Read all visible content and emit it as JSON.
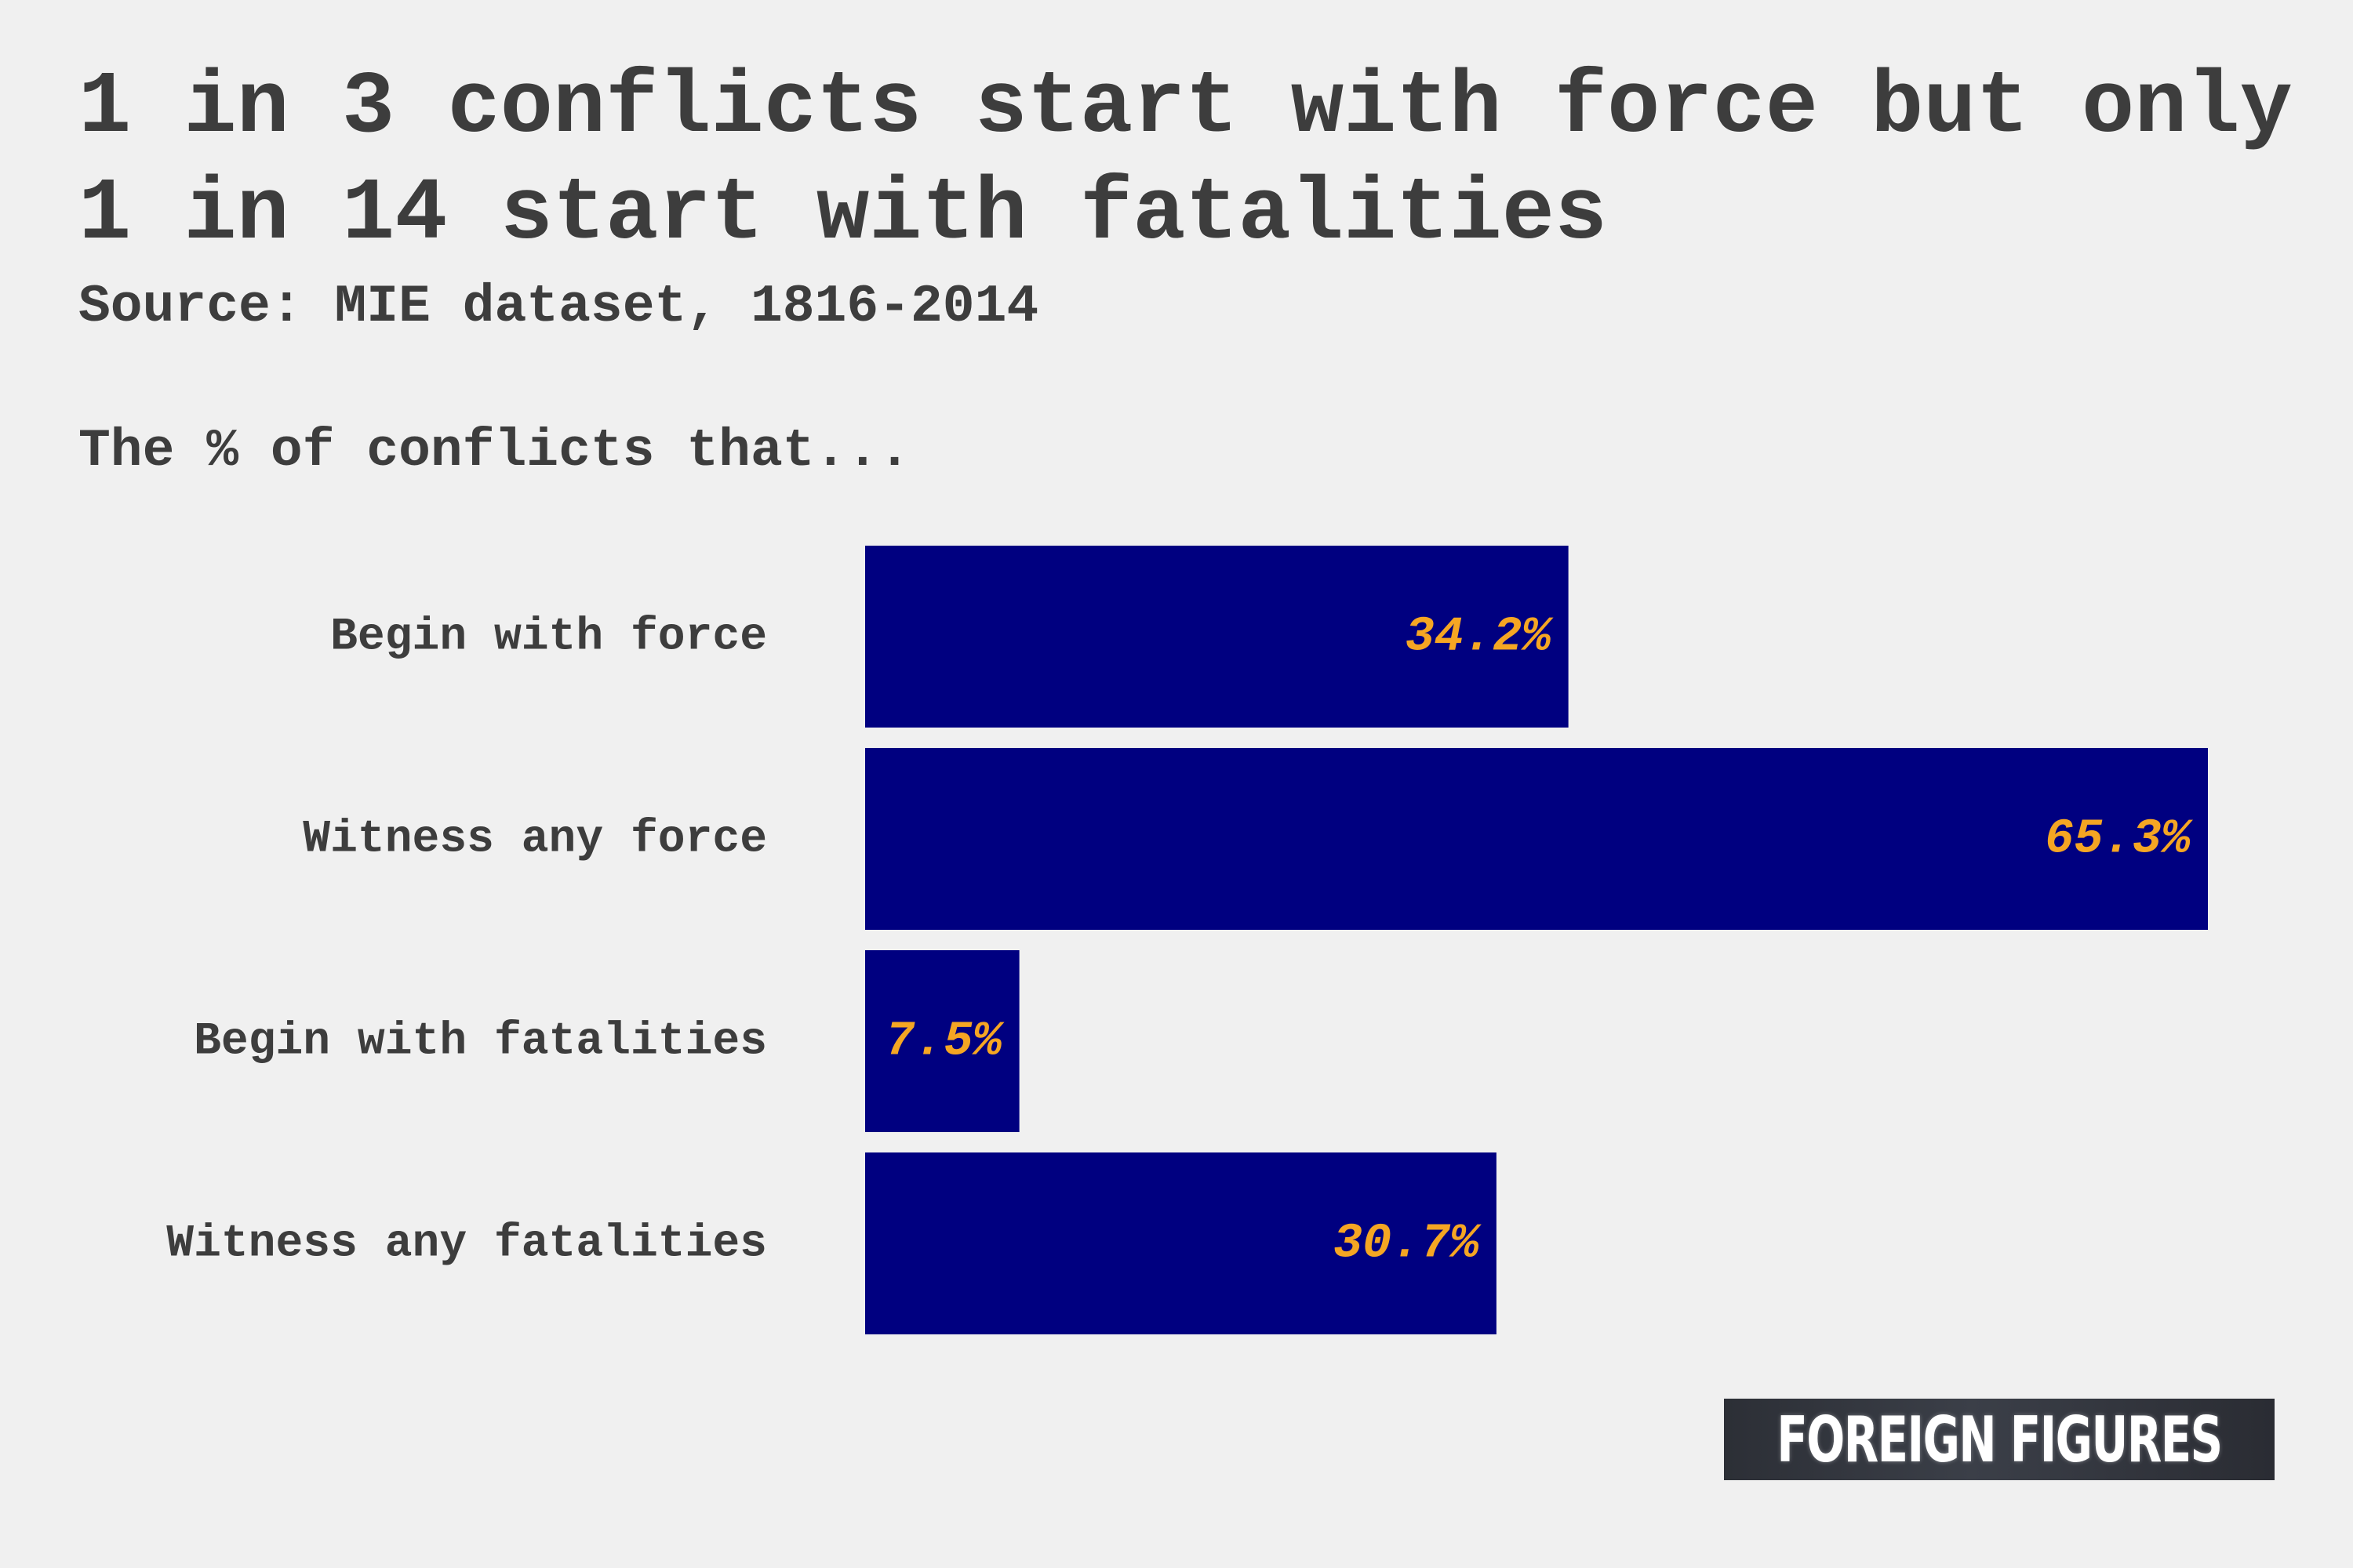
{
  "title": "1 in 3 conflicts start with force but only 1 in 14 start with fatalities",
  "source": "Source: MIE dataset, 1816-2014",
  "subtitle": "The % of conflicts that...",
  "logo_text": "FOREIGN FIGURES",
  "colors": {
    "background": "#f0f0f0",
    "bar": "#000080",
    "value_label": "#f5a623",
    "text": "#3d3d3d"
  },
  "chart_data": {
    "type": "bar",
    "orientation": "horizontal",
    "categories": [
      "Begin with force",
      "Witness any force",
      "Begin with fatalities",
      "Witness any fatalities"
    ],
    "values": [
      34.2,
      65.3,
      7.5,
      30.7
    ],
    "value_labels": [
      "34.2%",
      "65.3%",
      "7.5%",
      "30.7%"
    ],
    "xlim": [
      0,
      65.3
    ],
    "grid": false,
    "axes_visible": false
  }
}
